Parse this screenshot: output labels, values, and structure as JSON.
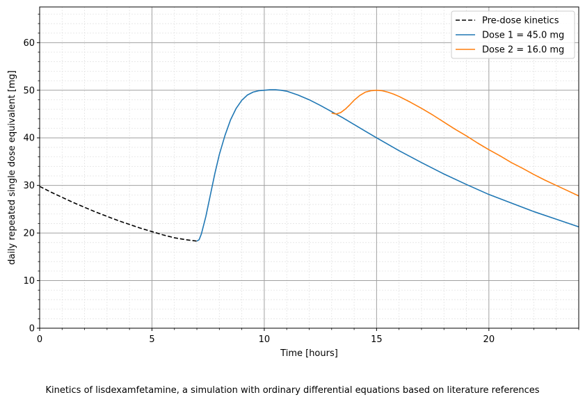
{
  "caption": "Kinetics of lisdexamfetamine, a simulation with ordinary differential equations based on literature references",
  "chart_data": {
    "type": "line",
    "xlabel": "Time [hours]",
    "ylabel": "daily repeated single dose equivalent [mg]",
    "xlim": [
      0,
      24
    ],
    "ylim": [
      0,
      67.5
    ],
    "xticks": [
      0,
      5,
      10,
      15,
      20
    ],
    "yticks": [
      0,
      10,
      20,
      30,
      40,
      50,
      60
    ],
    "grid": "major and minor",
    "legend_position": "upper right",
    "series": [
      {
        "name": "Pre-dose kinetics",
        "color": "#000000",
        "style": "dashed",
        "x": [
          0,
          0.5,
          1,
          1.5,
          2,
          2.5,
          3,
          3.5,
          4,
          4.5,
          5,
          5.5,
          6,
          6.5,
          7
        ],
        "y": [
          29.8,
          28.6,
          27.5,
          26.4,
          25.4,
          24.4,
          23.5,
          22.6,
          21.8,
          21.0,
          20.3,
          19.6,
          19.0,
          18.6,
          18.3
        ]
      },
      {
        "name": "Dose 1 = 45.0 mg",
        "color": "#1f77b4",
        "style": "solid",
        "x": [
          7,
          7.1,
          7.2,
          7.4,
          7.6,
          7.8,
          8,
          8.25,
          8.5,
          8.75,
          9,
          9.25,
          9.5,
          9.75,
          10,
          10.25,
          10.5,
          10.75,
          11,
          11.5,
          12,
          12.5,
          13,
          13.5,
          14,
          14.5,
          15,
          16,
          17,
          18,
          19,
          20,
          21,
          22,
          23,
          24
        ],
        "y": [
          18.3,
          18.6,
          19.8,
          23.5,
          28.0,
          32.5,
          36.5,
          40.5,
          43.8,
          46.2,
          47.9,
          49.0,
          49.6,
          49.9,
          50.0,
          50.1,
          50.1,
          50.0,
          49.8,
          49.0,
          48.0,
          46.8,
          45.5,
          44.2,
          42.8,
          41.4,
          40.0,
          37.3,
          34.8,
          32.4,
          30.2,
          28.1,
          26.3,
          24.5,
          22.9,
          21.3
        ]
      },
      {
        "name": "Dose 2 = 16.0 mg",
        "color": "#ff7f0e",
        "style": "solid",
        "x": [
          13,
          13.1,
          13.2,
          13.4,
          13.6,
          13.8,
          14,
          14.25,
          14.5,
          14.75,
          15,
          15.25,
          15.5,
          15.75,
          16,
          16.5,
          17,
          17.5,
          18,
          18.5,
          19,
          19.5,
          20,
          20.5,
          21,
          21.5,
          22,
          22.5,
          23,
          23.5,
          24
        ],
        "y": [
          45.2,
          45.1,
          45.0,
          45.3,
          46.0,
          46.9,
          47.9,
          48.9,
          49.6,
          49.9,
          50.0,
          49.9,
          49.6,
          49.2,
          48.7,
          47.5,
          46.2,
          44.8,
          43.3,
          41.8,
          40.4,
          38.9,
          37.5,
          36.2,
          34.8,
          33.6,
          32.3,
          31.1,
          30.0,
          28.9,
          27.8
        ]
      }
    ]
  }
}
